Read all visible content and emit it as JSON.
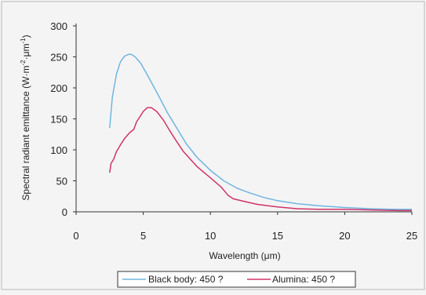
{
  "chart_data": {
    "type": "line",
    "title": "",
    "xlabel": "Wavelength (μm)",
    "ylabel_parts": {
      "main": "Spectral radiant emittance (W·m",
      "exp1": "-2",
      "mid": "·μm",
      "exp2": "-1",
      "end": ")"
    },
    "xlim": [
      0,
      25
    ],
    "ylim": [
      0,
      300
    ],
    "xticks": [
      0,
      5,
      10,
      15,
      20,
      25
    ],
    "yticks": [
      0,
      50,
      100,
      150,
      200,
      250,
      300
    ],
    "grid": false,
    "legend_position": "bottom",
    "series": [
      {
        "name": "Black body: 450 ?",
        "color": "#6fb6e0",
        "x": [
          2.5,
          2.7,
          3.0,
          3.3,
          3.6,
          3.9,
          4.1,
          4.4,
          4.8,
          5.2,
          5.7,
          6.2,
          6.8,
          7.5,
          8.2,
          9.0,
          10.0,
          11.0,
          12.0,
          13.0,
          14.0,
          15.0,
          16.5,
          18.0,
          20.0,
          22.0,
          23.5,
          25.0
        ],
        "y": [
          135,
          185,
          222,
          242,
          251,
          254,
          254,
          250,
          240,
          225,
          205,
          185,
          160,
          135,
          110,
          88,
          67,
          50,
          38,
          30,
          23,
          18,
          13,
          10,
          7,
          5,
          4,
          4
        ]
      },
      {
        "name": "Alumina: 450 ?",
        "color": "#d0336a",
        "x": [
          2.5,
          2.6,
          2.8,
          3.0,
          3.3,
          3.6,
          4.0,
          4.3,
          4.5,
          4.8,
          5.0,
          5.3,
          5.6,
          6.0,
          6.5,
          7.0,
          7.5,
          8.0,
          9.0,
          10.0,
          10.8,
          11.3,
          11.7,
          12.5,
          13.5,
          15.0,
          16.5,
          18.0,
          20.0,
          22.0,
          24.0,
          25.0
        ],
        "y": [
          63,
          78,
          85,
          97,
          108,
          118,
          128,
          133,
          145,
          155,
          162,
          168,
          168,
          162,
          148,
          130,
          113,
          97,
          73,
          55,
          40,
          27,
          21,
          17,
          12,
          8,
          5,
          4,
          4,
          3,
          2,
          2
        ]
      }
    ]
  }
}
